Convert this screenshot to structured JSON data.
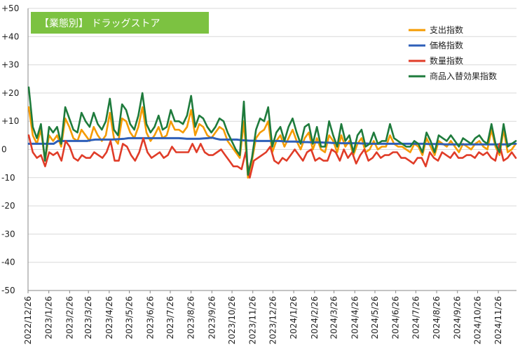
{
  "chart_data": {
    "type": "line",
    "title": "【業態別】 ドラッグストア",
    "title_bg": "#7cc241",
    "ylim": [
      -50,
      50
    ],
    "yticks": [
      50,
      40,
      30,
      20,
      10,
      0,
      -10,
      -20,
      -30,
      -40,
      -50
    ],
    "ytick_labels": [
      "+50",
      "+40",
      "+30",
      "+20",
      "+10",
      "0",
      "-10",
      "-20",
      "-30",
      "-40",
      "-50"
    ],
    "grid": true,
    "legend_position": "top-right",
    "x_start": "2022-12-26",
    "x_end": "2024-12-23",
    "x_ticks": [
      "2022-12-26",
      "2023-01-26",
      "2023-02-26",
      "2023-03-26",
      "2023-04-26",
      "2023-05-26",
      "2023-06-26",
      "2023-07-26",
      "2023-08-26",
      "2023-09-26",
      "2023-10-26",
      "2023-11-26",
      "2023-12-26",
      "2024-01-26",
      "2024-02-26",
      "2024-03-26",
      "2024-04-26",
      "2024-05-26",
      "2024-06-26",
      "2024-07-26",
      "2024-08-26",
      "2024-09-26",
      "2024-10-26",
      "2024-11-26"
    ],
    "x_tick_labels": [
      "2022/12/26",
      "2023/1/26",
      "2023/2/26",
      "2023/3/26",
      "2023/4/26",
      "2023/5/26",
      "2023/6/26",
      "2023/7/26",
      "2023/8/26",
      "2023/9/26",
      "2023/10/26",
      "2023/11/26",
      "2023/12/26",
      "2024/1/26",
      "2024/2/26",
      "2024/3/26",
      "2024/4/26",
      "2024/5/26",
      "2024/6/26",
      "2024/7/26",
      "2024/8/26",
      "2024/9/26",
      "2024/10/26",
      "2024/11/26"
    ],
    "series": [
      {
        "name": "支出指数",
        "color": "#f59b00",
        "values": [
          15,
          5,
          2,
          7,
          -4,
          5,
          3,
          5,
          1,
          11,
          8,
          4,
          3,
          7,
          5,
          3,
          8,
          5,
          3,
          5,
          13,
          4,
          2,
          11,
          10,
          6,
          4,
          8,
          15,
          6,
          3,
          5,
          8,
          4,
          5,
          10,
          7,
          7,
          6,
          8,
          14,
          5,
          9,
          8,
          5,
          4,
          6,
          8,
          7,
          3,
          1,
          -1,
          -3,
          10,
          -10,
          -4,
          4,
          6,
          7,
          10,
          -1,
          3,
          5,
          1,
          4,
          7,
          3,
          0,
          4,
          6,
          0,
          4,
          0,
          -1,
          5,
          3,
          -1,
          5,
          1,
          3,
          -2,
          2,
          4,
          -1,
          0,
          3,
          0,
          1,
          1,
          5,
          2,
          1,
          1,
          0,
          -1,
          2,
          1,
          -2,
          4,
          1,
          -2,
          3,
          2,
          1,
          3,
          1,
          -1,
          2,
          1,
          0,
          2,
          3,
          1,
          0,
          7,
          1,
          -2,
          7,
          -1,
          0,
          2
        ]
      },
      {
        "name": "価格指数",
        "color": "#2e5fb8",
        "values": [
          2,
          2,
          2,
          2,
          2,
          2,
          2,
          3,
          3,
          3,
          3,
          3,
          3,
          3,
          3,
          3.3,
          3.5,
          3.5,
          3.5,
          3.5,
          3.5,
          3.6,
          3.7,
          3.8,
          4,
          4,
          4,
          4,
          4,
          4,
          4,
          4,
          4,
          4,
          4,
          4,
          4,
          3.9,
          3.8,
          3.8,
          3.8,
          3.8,
          3.9,
          4,
          4.2,
          3.8,
          3.5,
          3.5,
          3.5,
          3.5,
          3.5,
          3.3,
          3.2,
          3.1,
          3.1,
          3,
          3,
          3,
          3,
          3,
          3,
          2.9,
          2.8,
          2.8,
          2.8,
          2.7,
          2.6,
          2.6,
          2.5,
          2.5,
          2.5,
          2.4,
          2.4,
          2.3,
          2.3,
          2.2,
          2.2,
          2.2,
          2.2,
          2.2,
          2.1,
          2.1,
          2,
          2,
          2,
          2,
          2,
          2,
          2,
          2,
          2,
          2,
          2,
          2,
          2,
          2,
          1.9,
          1.9,
          1.9,
          1.9,
          1.8,
          1.8,
          1.8,
          1.8,
          1.8,
          1.8,
          1.8,
          1.8,
          1.8,
          1.8,
          1.8,
          1.8,
          1.8,
          1.8,
          1.8,
          1.8,
          2,
          2
        ]
      },
      {
        "name": "数量指数",
        "color": "#e03c28",
        "values": [
          5,
          -1,
          -3,
          -2,
          -6,
          -1,
          -2,
          -1,
          -4,
          3,
          1,
          -3,
          -4,
          -2,
          -3,
          -3,
          -1,
          -2,
          -3,
          -1,
          3,
          -4,
          -4,
          2,
          1,
          -2,
          -4,
          -1,
          4,
          -1,
          -3,
          -2,
          -1,
          -3,
          -2,
          1,
          -1,
          -1,
          -1,
          -1,
          2,
          -1,
          2,
          -1,
          -2,
          -2,
          -1,
          0,
          -2,
          -4,
          -6,
          -6,
          -7,
          -1,
          -10,
          -4,
          -3,
          -2,
          -1,
          1,
          -4,
          -5,
          -3,
          -4,
          -2,
          0,
          -2,
          -4,
          -1,
          0,
          -4,
          -3,
          -4,
          -4,
          0,
          -1,
          -4,
          0,
          -3,
          -1,
          -5,
          -2,
          0,
          -4,
          -3,
          -1,
          -3,
          -2,
          -2,
          -1,
          -1,
          -3,
          -3,
          -4,
          -5,
          -3,
          -3,
          -6,
          -1,
          -3,
          -4,
          -1,
          -2,
          -3,
          -1,
          -3,
          -3,
          -2,
          -2,
          -3,
          -1,
          -2,
          -1,
          -3,
          -4,
          2,
          -4,
          -3,
          -1,
          -3
        ]
      },
      {
        "name": "商品入替効果指数",
        "color": "#1e7b3c",
        "values": [
          22,
          8,
          4,
          9,
          -4,
          8,
          6,
          8,
          2,
          15,
          11,
          7,
          6,
          13,
          10,
          8,
          13,
          9,
          7,
          10,
          18,
          7,
          5,
          16,
          14,
          9,
          7,
          12,
          20,
          9,
          6,
          8,
          12,
          7,
          8,
          14,
          10,
          10,
          9,
          12,
          19,
          8,
          12,
          11,
          8,
          6,
          8,
          11,
          10,
          6,
          3,
          0,
          -2,
          17,
          -9,
          -3,
          7,
          11,
          10,
          15,
          1,
          6,
          8,
          3,
          8,
          11,
          6,
          2,
          8,
          9,
          2,
          8,
          1,
          1,
          10,
          5,
          1,
          9,
          3,
          5,
          -1,
          5,
          7,
          1,
          2,
          6,
          2,
          3,
          3,
          9,
          4,
          3,
          2,
          1,
          1,
          3,
          2,
          -1,
          6,
          3,
          -1,
          5,
          4,
          3,
          5,
          3,
          1,
          4,
          3,
          2,
          4,
          5,
          3,
          2,
          9,
          2,
          -1,
          9,
          1,
          2,
          3
        ]
      }
    ]
  }
}
